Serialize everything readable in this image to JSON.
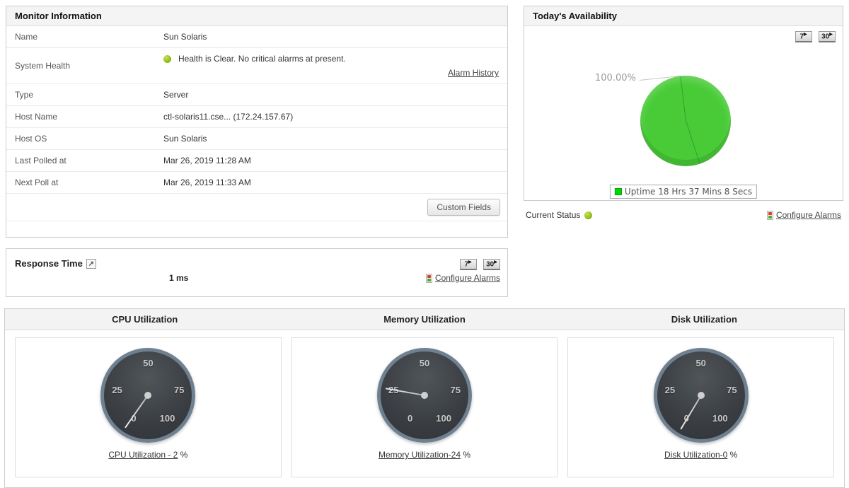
{
  "monitor": {
    "title": "Monitor Information",
    "name_label": "Name",
    "name_value": "Sun Solaris",
    "health_label": "System Health",
    "health_text": "Health is Clear. No critical alarms at present.",
    "alarm_history_link": "Alarm History",
    "type_label": "Type",
    "type_value": "Server",
    "host_name_label": "Host Name",
    "host_name_value": "ctl-solaris11.cse... (172.24.157.67)",
    "host_os_label": "Host OS",
    "host_os_value": "Sun Solaris",
    "last_polled_label": "Last Polled at",
    "last_polled_value": "Mar 26, 2019 11:28 AM",
    "next_poll_label": "Next Poll at",
    "next_poll_value": "Mar 26, 2019 11:33 AM",
    "custom_fields_button": "Custom Fields"
  },
  "availability": {
    "title": "Today's Availability",
    "range_buttons": [
      "7",
      "30"
    ],
    "pie_label": "100.00%",
    "legend_text": "Uptime 18 Hrs 37 Mins 8 Secs",
    "current_status_label": "Current Status",
    "configure_alarms_link": "Configure Alarms"
  },
  "response": {
    "title": "Response Time",
    "value": "1 ms",
    "range_buttons": [
      "7",
      "30"
    ],
    "configure_alarms_link": "Configure Alarms"
  },
  "utilization": {
    "ticks": [
      "0",
      "25",
      "50",
      "75",
      "100"
    ],
    "sections": [
      {
        "title": "CPU Utilization",
        "link_text": "CPU Utilization - 2",
        "unit_suffix": " %",
        "needle_deg": -145
      },
      {
        "title": "Memory Utilization",
        "link_text": "Memory Utilization-24",
        "unit_suffix": " %",
        "needle_deg": -80
      },
      {
        "title": "Disk Utilization",
        "link_text": "Disk Utilization-0",
        "unit_suffix": " %",
        "needle_deg": -149
      }
    ]
  },
  "icons": {
    "trend_arrow": "▶",
    "external_link": "↗"
  },
  "colors": {
    "pie_green": "#49cb38",
    "legend_green": "#00d500",
    "status_green": "#8ab512",
    "gauge_rim": "#6f8090"
  },
  "chart_data": [
    {
      "type": "pie",
      "title": "Today's Availability",
      "slices": [
        {
          "label": "Uptime 18 Hrs 37 Mins 8 Secs",
          "value": 100.0,
          "color": "#49cb38",
          "data_label": "100.00%"
        }
      ],
      "legend_position": "bottom"
    },
    {
      "type": "gauge",
      "title": "CPU Utilization",
      "value": 2,
      "min": 0,
      "max": 100,
      "ticks": [
        0,
        25,
        50,
        75,
        100
      ],
      "unit": "%"
    },
    {
      "type": "gauge",
      "title": "Memory Utilization",
      "value": 24,
      "min": 0,
      "max": 100,
      "ticks": [
        0,
        25,
        50,
        75,
        100
      ],
      "unit": "%"
    },
    {
      "type": "gauge",
      "title": "Disk Utilization",
      "value": 0,
      "min": 0,
      "max": 100,
      "ticks": [
        0,
        25,
        50,
        75,
        100
      ],
      "unit": "%"
    }
  ]
}
